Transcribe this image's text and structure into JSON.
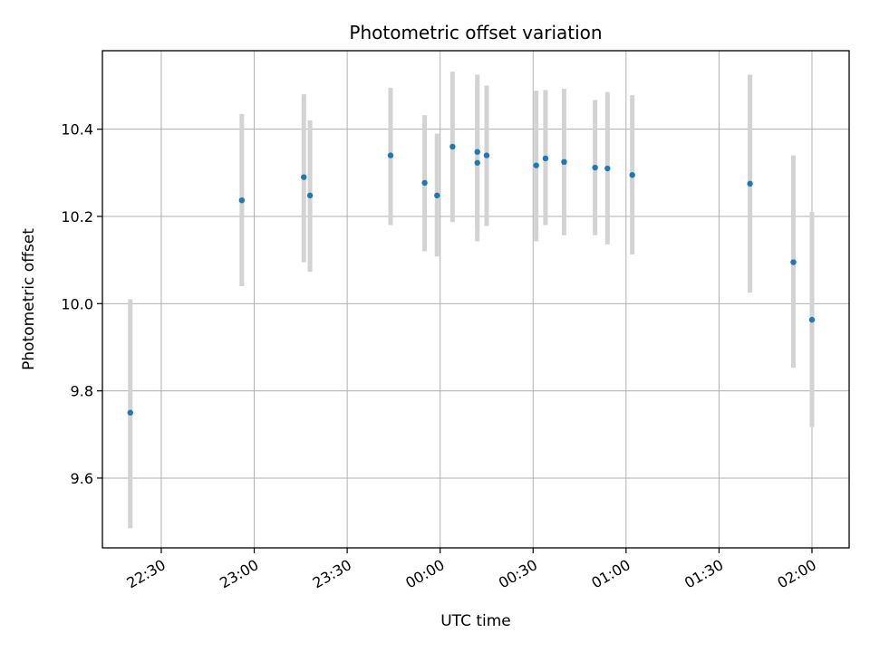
{
  "chart_data": {
    "type": "scatter",
    "title": "Photometric offset variation",
    "xlabel": "UTC time",
    "ylabel": "Photometric offset",
    "x_tick_labels": [
      "22:30",
      "23:00",
      "23:30",
      "00:00",
      "00:30",
      "01:00",
      "01:30",
      "02:00"
    ],
    "y_tick_labels": [
      "9.6",
      "9.8",
      "10.0",
      "10.2",
      "10.4"
    ],
    "y_ticks": [
      9.6,
      9.8,
      10.0,
      10.2,
      10.4
    ],
    "x_ticks": [
      "22:30",
      "23:00",
      "23:30",
      "00:00",
      "00:30",
      "01:00",
      "01:30",
      "02:00"
    ],
    "xlim": [
      "22:11",
      "02:12"
    ],
    "ylim": [
      9.44,
      10.58
    ],
    "grid": true,
    "colors": {
      "point": "#1f77b4",
      "errorbar": "#d3d3d3",
      "grid": "#b0b0b0"
    },
    "points": [
      {
        "time": "22:20",
        "y": 9.75,
        "yerr_low": 9.485,
        "yerr_high": 10.01
      },
      {
        "time": "22:56",
        "y": 10.237,
        "yerr_low": 10.04,
        "yerr_high": 10.435
      },
      {
        "time": "23:16",
        "y": 10.29,
        "yerr_low": 10.095,
        "yerr_high": 10.48
      },
      {
        "time": "23:18",
        "y": 10.248,
        "yerr_low": 10.073,
        "yerr_high": 10.42
      },
      {
        "time": "23:44",
        "y": 10.34,
        "yerr_low": 10.18,
        "yerr_high": 10.495
      },
      {
        "time": "23:55",
        "y": 10.277,
        "yerr_low": 10.12,
        "yerr_high": 10.432
      },
      {
        "time": "23:59",
        "y": 10.248,
        "yerr_low": 10.108,
        "yerr_high": 10.39
      },
      {
        "time": "00:04",
        "y": 10.36,
        "yerr_low": 10.187,
        "yerr_high": 10.532
      },
      {
        "time": "00:12",
        "y": 10.348,
        "yerr_low": 10.175,
        "yerr_high": 10.525
      },
      {
        "time": "00:12",
        "y": 10.323,
        "yerr_low": 10.143,
        "yerr_high": 10.503
      },
      {
        "time": "00:15",
        "y": 10.34,
        "yerr_low": 10.178,
        "yerr_high": 10.5
      },
      {
        "time": "00:31",
        "y": 10.317,
        "yerr_low": 10.143,
        "yerr_high": 10.488
      },
      {
        "time": "00:34",
        "y": 10.333,
        "yerr_low": 10.18,
        "yerr_high": 10.49
      },
      {
        "time": "00:40",
        "y": 10.325,
        "yerr_low": 10.157,
        "yerr_high": 10.493
      },
      {
        "time": "00:50",
        "y": 10.312,
        "yerr_low": 10.157,
        "yerr_high": 10.467
      },
      {
        "time": "00:54",
        "y": 10.31,
        "yerr_low": 10.136,
        "yerr_high": 10.485
      },
      {
        "time": "01:02",
        "y": 10.295,
        "yerr_low": 10.113,
        "yerr_high": 10.478
      },
      {
        "time": "01:40",
        "y": 10.275,
        "yerr_low": 10.025,
        "yerr_high": 10.525
      },
      {
        "time": "01:54",
        "y": 10.095,
        "yerr_low": 9.853,
        "yerr_high": 10.34
      },
      {
        "time": "02:00",
        "y": 9.963,
        "yerr_low": 9.717,
        "yerr_high": 10.21
      }
    ]
  }
}
